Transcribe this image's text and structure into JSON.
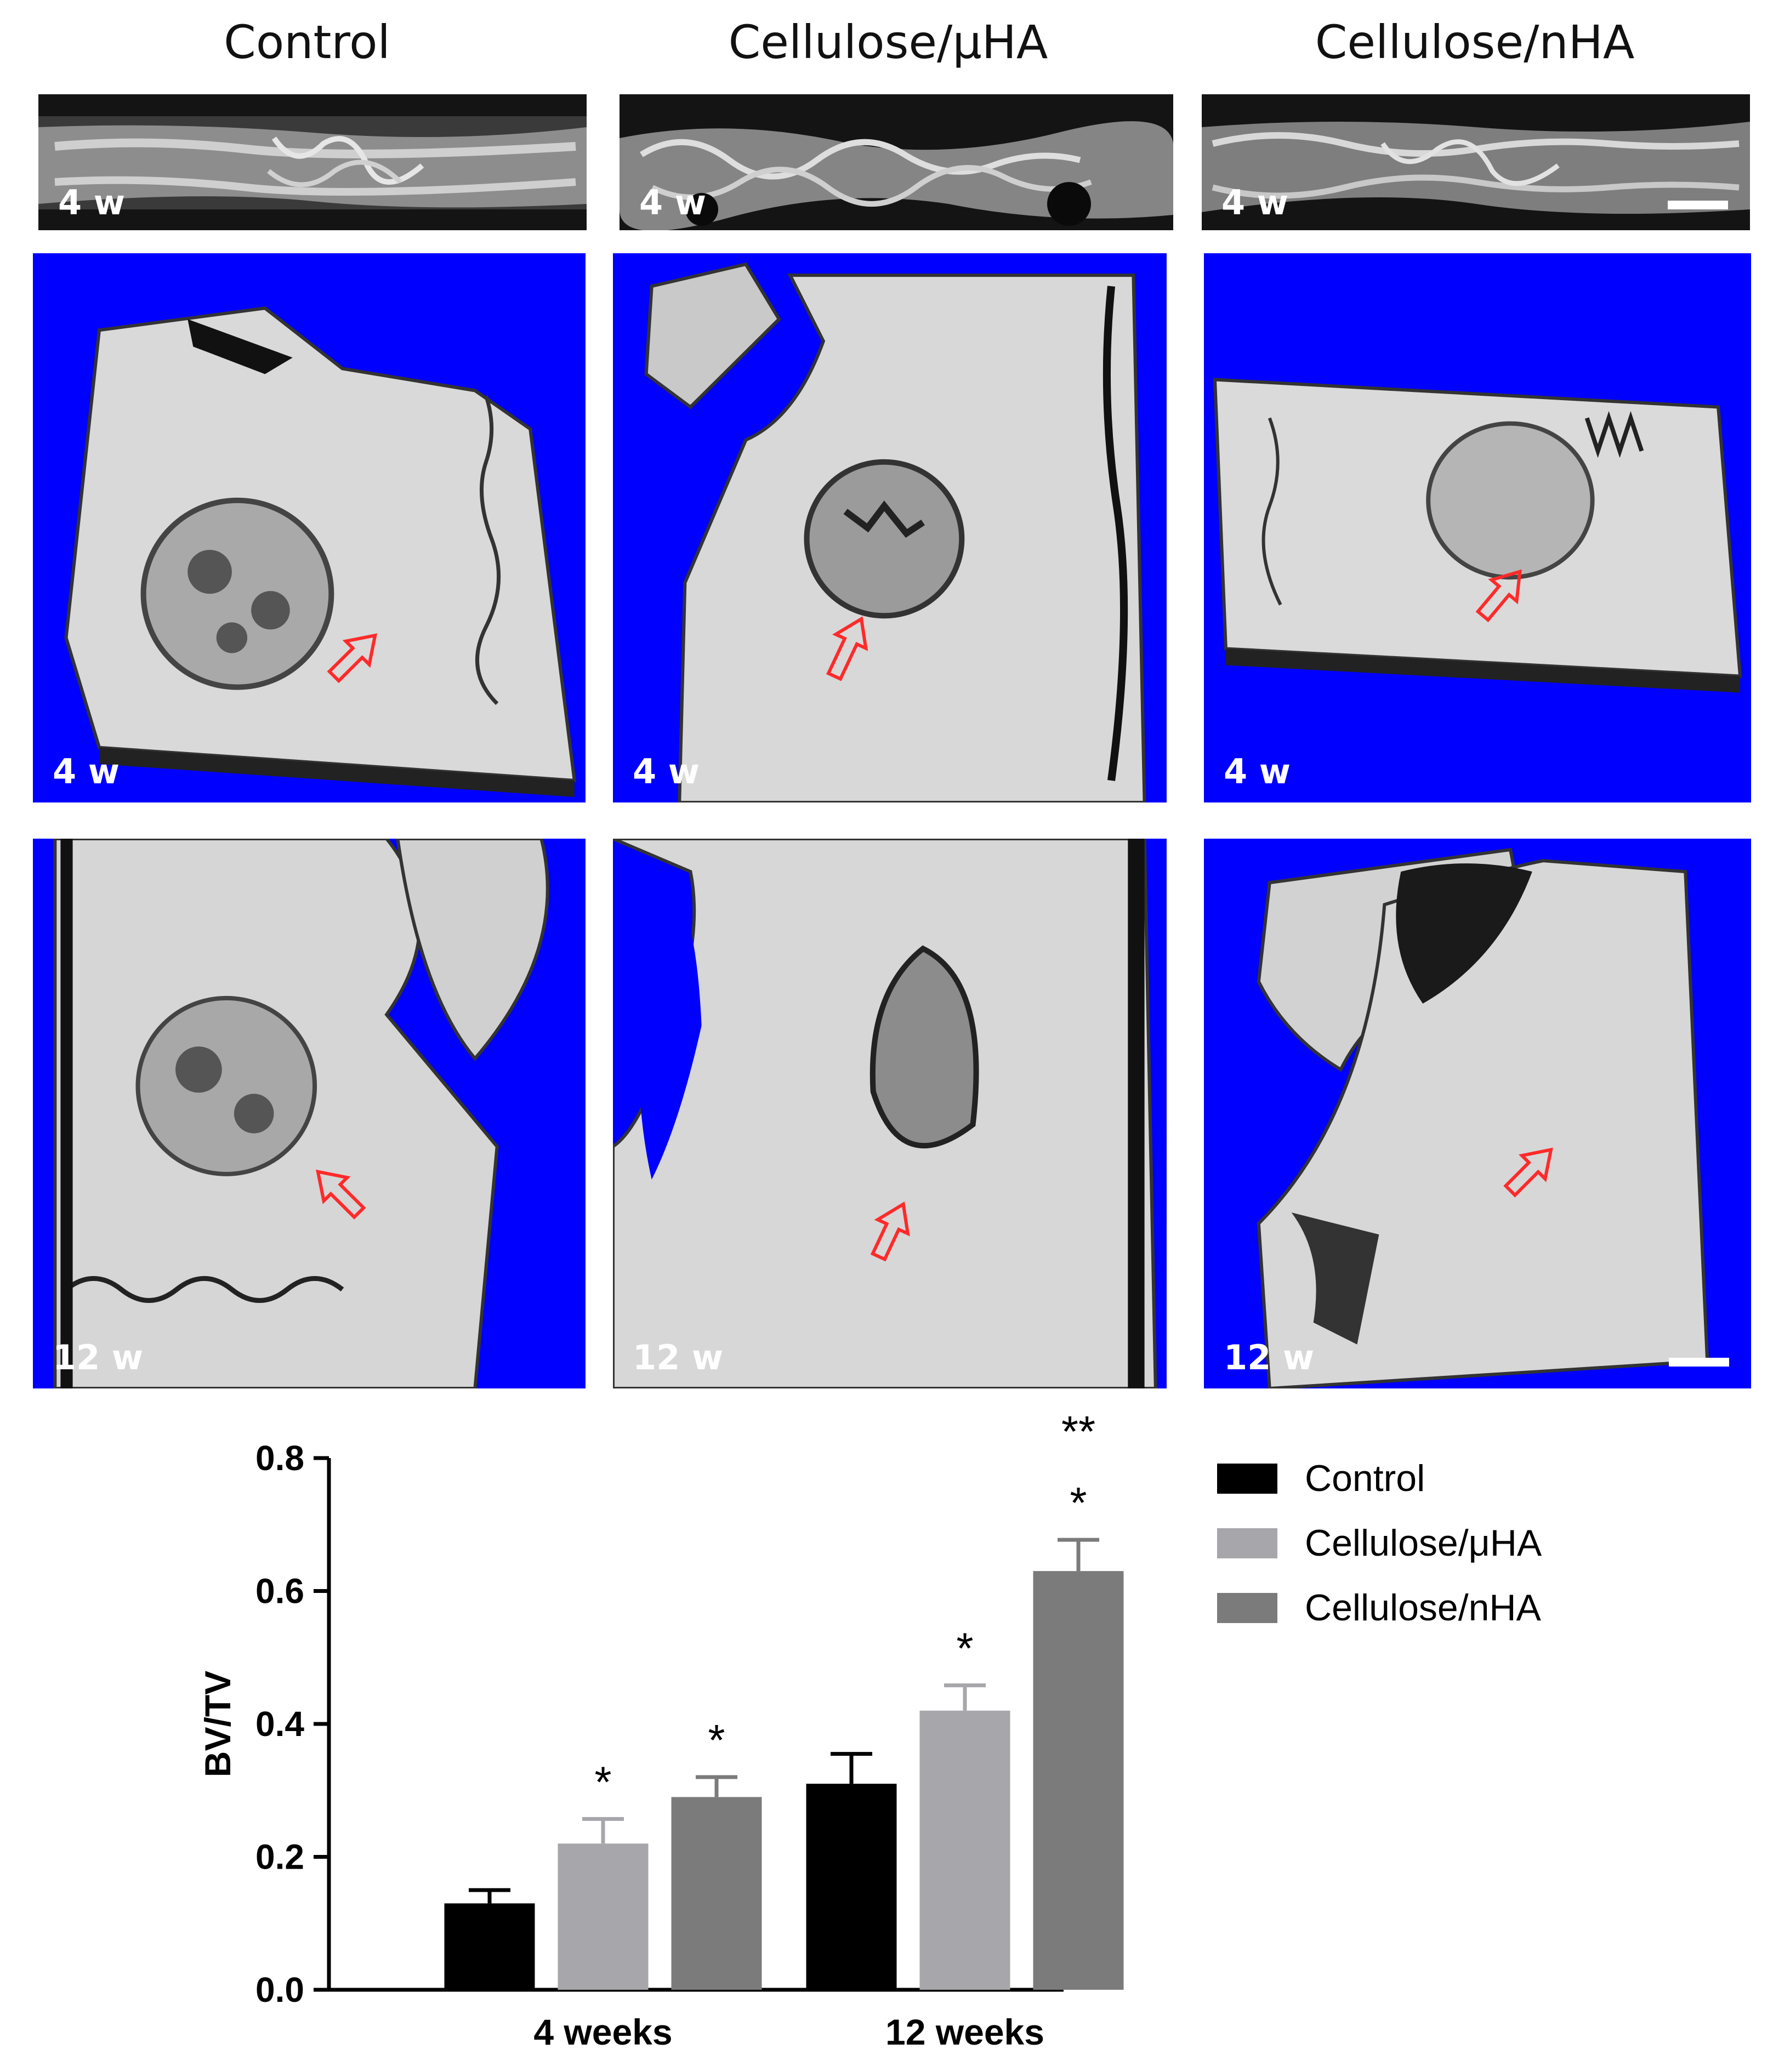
{
  "columns": [
    {
      "title": "Control"
    },
    {
      "title": "Cellulose/μHA"
    },
    {
      "title": "Cellulose/nHA"
    }
  ],
  "rows": [
    {
      "labels": [
        "4 w",
        "4 w",
        "4 w"
      ]
    },
    {
      "labels": [
        "4 w",
        "4 w",
        "4 w"
      ]
    },
    {
      "labels": [
        "12 w",
        "12 w",
        "12 w"
      ]
    }
  ],
  "colors": {
    "render_background": "#0000ff",
    "arrow": "#ff2a2a",
    "ct_background": "#141414"
  },
  "icons": {
    "defect_arrow": "hollow-red-arrow-icon",
    "bone_render": "bone-3d-render",
    "ct_slice": "micro-ct-slice"
  },
  "chart_data": {
    "type": "bar",
    "ylabel": "BV/TV",
    "xlabel": "",
    "ylim": [
      0.0,
      0.8
    ],
    "yticks": [
      "0.0",
      "0.2",
      "0.4",
      "0.6",
      "0.8"
    ],
    "categories": [
      "4 weeks",
      "12 weeks"
    ],
    "series": [
      {
        "name": "Control",
        "color": "#000000",
        "values": [
          0.13,
          0.31
        ],
        "errors": [
          0.02,
          0.045
        ],
        "sig": [
          "",
          ""
        ]
      },
      {
        "name": "Cellulose/μHA",
        "color": "#a6a6ab",
        "values": [
          0.22,
          0.42
        ],
        "errors": [
          0.037,
          0.038
        ],
        "sig": [
          "*",
          "*"
        ]
      },
      {
        "name": "Cellulose/nHA",
        "color": "#7b7b7b",
        "values": [
          0.29,
          0.63
        ],
        "errors": [
          0.03,
          0.047
        ],
        "sig": [
          "*",
          "*"
        ]
      }
    ],
    "extra_annotations": [
      {
        "category": "12 weeks",
        "series": "Cellulose/nHA",
        "text": "**"
      }
    ],
    "legend": "right",
    "grid": false
  }
}
